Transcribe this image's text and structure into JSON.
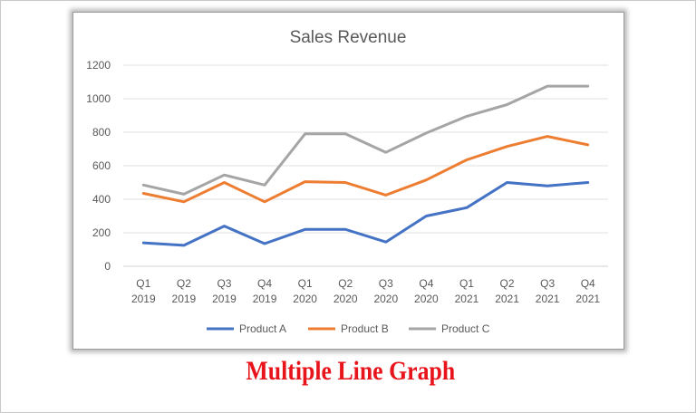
{
  "caption": "Multiple Line Graph",
  "colors": {
    "product_a": "#4472c4",
    "product_b": "#ed7d31",
    "product_c": "#a5a5a5",
    "caption": "#e8141b"
  },
  "chart_data": {
    "type": "line",
    "title": "Sales Revenue",
    "xlabel": "",
    "ylabel": "",
    "ylim": [
      0,
      1200
    ],
    "yticks": [
      "0",
      "200",
      "400",
      "600",
      "800",
      "1000",
      "1200"
    ],
    "grid": true,
    "legend": "bottom",
    "categories": [
      [
        "Q1",
        "2019"
      ],
      [
        "Q2",
        "2019"
      ],
      [
        "Q3",
        "2019"
      ],
      [
        "Q4",
        "2019"
      ],
      [
        "Q1",
        "2020"
      ],
      [
        "Q2",
        "2020"
      ],
      [
        "Q3",
        "2020"
      ],
      [
        "Q4",
        "2020"
      ],
      [
        "Q1",
        "2021"
      ],
      [
        "Q2",
        "2021"
      ],
      [
        "Q3",
        "2021"
      ],
      [
        "Q4",
        "2021"
      ]
    ],
    "series": [
      {
        "name": "Product A",
        "color": "#4472c4",
        "values": [
          140,
          125,
          240,
          135,
          220,
          220,
          145,
          300,
          350,
          500,
          480,
          500
        ]
      },
      {
        "name": "Product B",
        "color": "#ed7d31",
        "values": [
          435,
          385,
          500,
          385,
          505,
          500,
          425,
          515,
          635,
          715,
          775,
          725
        ]
      },
      {
        "name": "Product C",
        "color": "#a5a5a5",
        "values": [
          485,
          430,
          545,
          485,
          790,
          790,
          680,
          795,
          895,
          965,
          1075,
          1075
        ]
      }
    ]
  }
}
